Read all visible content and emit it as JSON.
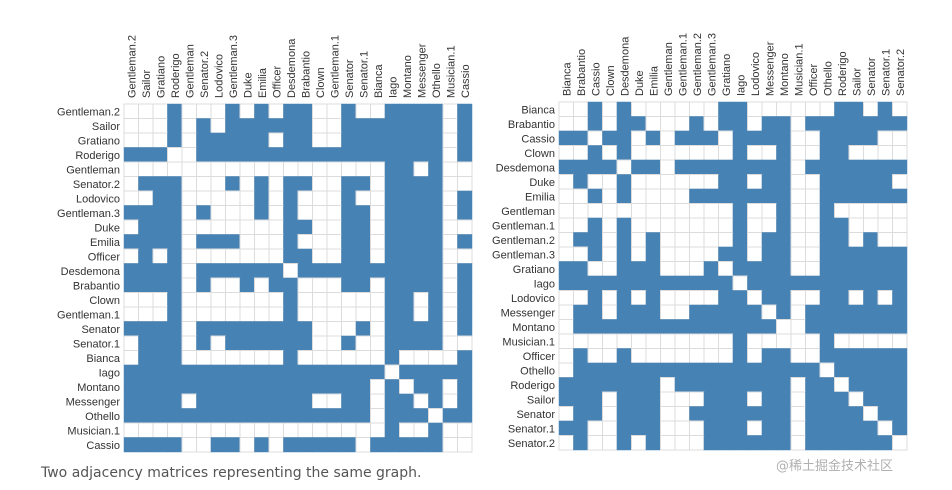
{
  "caption": "Two adjacency matrices representing the same graph.",
  "watermark": "@稀土掘金技术社区",
  "colors": {
    "fill": "#4682b4",
    "grid": "#dcdcdc",
    "background": "#ffffff",
    "label": "#333333"
  },
  "chart_data": [
    {
      "type": "heatmap",
      "title": "",
      "labels": [
        "Gentleman.2",
        "Sailor",
        "Gratiano",
        "Roderigo",
        "Gentleman",
        "Senator.2",
        "Lodovico",
        "Gentleman.3",
        "Duke",
        "Emilia",
        "Officer",
        "Desdemona",
        "Brabantio",
        "Clown",
        "Gentleman.1",
        "Senator",
        "Senator.1",
        "Bianca",
        "Iago",
        "Montano",
        "Messenger",
        "Othello",
        "Musician.1",
        "Cassio"
      ],
      "matrix": [
        [
          0,
          0,
          0,
          1,
          0,
          0,
          0,
          1,
          0,
          1,
          0,
          1,
          1,
          0,
          0,
          1,
          0,
          0,
          1,
          1,
          1,
          1,
          0,
          1
        ],
        [
          0,
          0,
          0,
          1,
          0,
          1,
          0,
          1,
          1,
          1,
          1,
          1,
          1,
          0,
          0,
          1,
          1,
          1,
          1,
          1,
          1,
          1,
          0,
          1
        ],
        [
          0,
          0,
          0,
          1,
          0,
          1,
          1,
          1,
          1,
          1,
          0,
          1,
          1,
          0,
          0,
          1,
          1,
          1,
          1,
          1,
          1,
          1,
          0,
          1
        ],
        [
          1,
          1,
          1,
          0,
          0,
          1,
          1,
          1,
          1,
          1,
          1,
          1,
          1,
          1,
          1,
          1,
          1,
          1,
          1,
          1,
          1,
          1,
          0,
          1
        ],
        [
          0,
          0,
          0,
          0,
          0,
          0,
          0,
          0,
          0,
          0,
          0,
          0,
          0,
          0,
          0,
          0,
          0,
          0,
          1,
          1,
          0,
          1,
          0,
          0
        ],
        [
          0,
          1,
          1,
          1,
          0,
          0,
          0,
          1,
          0,
          1,
          0,
          1,
          1,
          0,
          0,
          1,
          1,
          0,
          1,
          1,
          1,
          1,
          0,
          0
        ],
        [
          0,
          0,
          1,
          1,
          0,
          0,
          0,
          0,
          0,
          1,
          0,
          1,
          0,
          0,
          0,
          1,
          0,
          0,
          1,
          1,
          1,
          1,
          0,
          1
        ],
        [
          1,
          1,
          1,
          1,
          0,
          1,
          0,
          0,
          0,
          1,
          0,
          1,
          0,
          0,
          0,
          1,
          1,
          0,
          1,
          1,
          1,
          1,
          0,
          1
        ],
        [
          0,
          1,
          1,
          1,
          0,
          0,
          0,
          0,
          0,
          0,
          0,
          1,
          1,
          0,
          0,
          1,
          1,
          0,
          1,
          1,
          1,
          1,
          0,
          0
        ],
        [
          1,
          1,
          1,
          1,
          0,
          1,
          1,
          1,
          0,
          0,
          0,
          1,
          0,
          0,
          0,
          1,
          1,
          0,
          1,
          1,
          1,
          1,
          0,
          1
        ],
        [
          0,
          1,
          0,
          1,
          0,
          0,
          0,
          0,
          0,
          0,
          0,
          1,
          1,
          0,
          0,
          1,
          1,
          0,
          1,
          1,
          1,
          1,
          0,
          0
        ],
        [
          1,
          1,
          1,
          1,
          0,
          1,
          1,
          1,
          1,
          1,
          1,
          0,
          1,
          1,
          1,
          1,
          1,
          1,
          1,
          1,
          1,
          1,
          0,
          1
        ],
        [
          1,
          1,
          1,
          1,
          0,
          1,
          0,
          0,
          1,
          0,
          1,
          1,
          0,
          0,
          0,
          1,
          1,
          0,
          1,
          1,
          1,
          1,
          0,
          1
        ],
        [
          0,
          0,
          0,
          1,
          0,
          0,
          0,
          0,
          0,
          0,
          0,
          1,
          0,
          0,
          0,
          0,
          0,
          0,
          1,
          1,
          0,
          1,
          0,
          1
        ],
        [
          0,
          0,
          0,
          1,
          0,
          0,
          0,
          0,
          0,
          0,
          0,
          1,
          0,
          0,
          0,
          0,
          0,
          0,
          1,
          1,
          0,
          1,
          0,
          1
        ],
        [
          1,
          1,
          1,
          1,
          0,
          1,
          1,
          1,
          1,
          1,
          1,
          1,
          1,
          0,
          0,
          0,
          1,
          0,
          1,
          1,
          1,
          1,
          0,
          1
        ],
        [
          0,
          1,
          1,
          1,
          0,
          1,
          0,
          1,
          1,
          1,
          1,
          1,
          1,
          0,
          0,
          1,
          0,
          0,
          1,
          1,
          1,
          1,
          0,
          0
        ],
        [
          0,
          1,
          1,
          1,
          0,
          0,
          0,
          0,
          0,
          0,
          0,
          1,
          0,
          0,
          0,
          0,
          0,
          0,
          1,
          0,
          0,
          0,
          0,
          1
        ],
        [
          1,
          1,
          1,
          1,
          1,
          1,
          1,
          1,
          1,
          1,
          1,
          1,
          1,
          1,
          1,
          1,
          1,
          1,
          0,
          1,
          1,
          1,
          1,
          1
        ],
        [
          1,
          1,
          1,
          1,
          1,
          1,
          1,
          1,
          1,
          1,
          1,
          1,
          1,
          1,
          1,
          1,
          1,
          0,
          1,
          0,
          1,
          1,
          0,
          1
        ],
        [
          1,
          1,
          1,
          1,
          0,
          1,
          1,
          1,
          1,
          1,
          1,
          1,
          1,
          0,
          0,
          1,
          1,
          0,
          1,
          1,
          0,
          1,
          0,
          1
        ],
        [
          1,
          1,
          1,
          1,
          1,
          1,
          1,
          1,
          1,
          1,
          1,
          1,
          1,
          1,
          1,
          1,
          1,
          0,
          1,
          1,
          1,
          0,
          1,
          1
        ],
        [
          0,
          0,
          0,
          0,
          0,
          0,
          0,
          0,
          0,
          0,
          0,
          0,
          0,
          0,
          0,
          0,
          0,
          0,
          1,
          0,
          0,
          1,
          0,
          0
        ],
        [
          1,
          1,
          1,
          1,
          0,
          0,
          1,
          1,
          0,
          1,
          0,
          1,
          1,
          1,
          1,
          1,
          0,
          1,
          1,
          1,
          1,
          1,
          0,
          0
        ]
      ]
    },
    {
      "type": "heatmap",
      "title": "",
      "labels": [
        "Bianca",
        "Brabantio",
        "Cassio",
        "Clown",
        "Desdemona",
        "Duke",
        "Emilia",
        "Gentleman",
        "Gentleman.1",
        "Gentleman.2",
        "Gentleman.3",
        "Gratiano",
        "Iago",
        "Lodovico",
        "Messenger",
        "Montano",
        "Musician.1",
        "Officer",
        "Othello",
        "Roderigo",
        "Sailor",
        "Senator",
        "Senator.1",
        "Senator.2"
      ],
      "matrix": [
        [
          0,
          0,
          1,
          0,
          1,
          0,
          0,
          0,
          0,
          0,
          0,
          1,
          1,
          0,
          0,
          0,
          0,
          0,
          0,
          1,
          1,
          0,
          1,
          0
        ],
        [
          0,
          0,
          1,
          0,
          1,
          1,
          0,
          0,
          0,
          1,
          0,
          1,
          1,
          0,
          1,
          1,
          0,
          1,
          1,
          1,
          1,
          1,
          1,
          1
        ],
        [
          1,
          1,
          0,
          1,
          1,
          0,
          1,
          0,
          1,
          1,
          1,
          0,
          1,
          1,
          1,
          1,
          0,
          0,
          1,
          1,
          1,
          1,
          0,
          0
        ],
        [
          0,
          0,
          1,
          0,
          1,
          0,
          0,
          0,
          0,
          0,
          0,
          0,
          1,
          0,
          0,
          1,
          0,
          0,
          1,
          1,
          0,
          0,
          0,
          0
        ],
        [
          1,
          1,
          1,
          1,
          0,
          1,
          1,
          0,
          1,
          1,
          1,
          1,
          1,
          1,
          1,
          1,
          0,
          1,
          1,
          1,
          1,
          1,
          1,
          1
        ],
        [
          0,
          1,
          0,
          0,
          1,
          0,
          0,
          0,
          0,
          0,
          0,
          1,
          1,
          0,
          1,
          1,
          0,
          0,
          1,
          1,
          1,
          1,
          1,
          0
        ],
        [
          0,
          0,
          1,
          0,
          1,
          0,
          0,
          0,
          0,
          1,
          1,
          1,
          1,
          1,
          1,
          1,
          0,
          0,
          1,
          1,
          1,
          1,
          1,
          1
        ],
        [
          0,
          0,
          0,
          0,
          0,
          0,
          0,
          0,
          0,
          0,
          0,
          0,
          1,
          0,
          0,
          1,
          0,
          0,
          1,
          0,
          0,
          0,
          0,
          0
        ],
        [
          0,
          0,
          1,
          0,
          1,
          0,
          0,
          0,
          0,
          0,
          0,
          0,
          1,
          0,
          0,
          1,
          0,
          0,
          1,
          1,
          0,
          0,
          0,
          0
        ],
        [
          0,
          1,
          1,
          0,
          1,
          0,
          1,
          0,
          0,
          0,
          0,
          0,
          1,
          0,
          1,
          1,
          0,
          0,
          1,
          1,
          0,
          1,
          0,
          0
        ],
        [
          0,
          0,
          1,
          0,
          1,
          0,
          1,
          0,
          0,
          0,
          0,
          1,
          1,
          0,
          1,
          1,
          0,
          0,
          1,
          1,
          1,
          1,
          1,
          1
        ],
        [
          1,
          1,
          0,
          0,
          1,
          1,
          1,
          0,
          0,
          0,
          1,
          0,
          1,
          1,
          1,
          1,
          0,
          0,
          1,
          1,
          1,
          1,
          1,
          1
        ],
        [
          1,
          1,
          1,
          1,
          1,
          1,
          1,
          1,
          1,
          1,
          1,
          1,
          0,
          1,
          1,
          1,
          1,
          1,
          1,
          1,
          1,
          1,
          1,
          1
        ],
        [
          0,
          0,
          1,
          0,
          1,
          0,
          1,
          0,
          0,
          0,
          0,
          1,
          1,
          0,
          1,
          1,
          0,
          0,
          1,
          1,
          0,
          1,
          0,
          1
        ],
        [
          0,
          1,
          1,
          0,
          1,
          1,
          1,
          0,
          0,
          1,
          1,
          1,
          1,
          1,
          0,
          1,
          0,
          1,
          1,
          1,
          1,
          1,
          1,
          1
        ],
        [
          0,
          1,
          1,
          1,
          1,
          1,
          1,
          1,
          1,
          1,
          1,
          1,
          1,
          1,
          1,
          0,
          0,
          1,
          1,
          1,
          1,
          1,
          1,
          1
        ],
        [
          0,
          0,
          0,
          0,
          0,
          0,
          0,
          0,
          0,
          0,
          0,
          0,
          1,
          0,
          0,
          0,
          0,
          0,
          1,
          0,
          0,
          0,
          0,
          0
        ],
        [
          0,
          1,
          0,
          0,
          1,
          0,
          0,
          0,
          0,
          0,
          0,
          0,
          1,
          0,
          1,
          1,
          0,
          0,
          1,
          1,
          1,
          1,
          1,
          1
        ],
        [
          0,
          1,
          1,
          1,
          1,
          1,
          1,
          1,
          1,
          1,
          1,
          1,
          1,
          1,
          1,
          1,
          1,
          1,
          0,
          1,
          1,
          1,
          1,
          1
        ],
        [
          1,
          1,
          1,
          1,
          1,
          1,
          1,
          0,
          1,
          1,
          1,
          1,
          1,
          1,
          1,
          1,
          0,
          1,
          1,
          0,
          1,
          1,
          1,
          1
        ],
        [
          1,
          1,
          1,
          0,
          1,
          1,
          1,
          0,
          0,
          0,
          1,
          1,
          1,
          0,
          1,
          1,
          0,
          1,
          1,
          1,
          0,
          1,
          1,
          1
        ],
        [
          0,
          1,
          1,
          0,
          1,
          1,
          1,
          0,
          0,
          1,
          1,
          1,
          1,
          1,
          1,
          1,
          0,
          1,
          1,
          1,
          1,
          0,
          1,
          1
        ],
        [
          1,
          1,
          0,
          0,
          1,
          1,
          1,
          0,
          0,
          0,
          1,
          1,
          1,
          0,
          1,
          1,
          0,
          1,
          1,
          1,
          1,
          1,
          0,
          1
        ],
        [
          0,
          1,
          0,
          0,
          1,
          0,
          1,
          0,
          0,
          0,
          1,
          1,
          1,
          1,
          1,
          1,
          0,
          1,
          1,
          1,
          1,
          1,
          1,
          0
        ]
      ]
    }
  ]
}
